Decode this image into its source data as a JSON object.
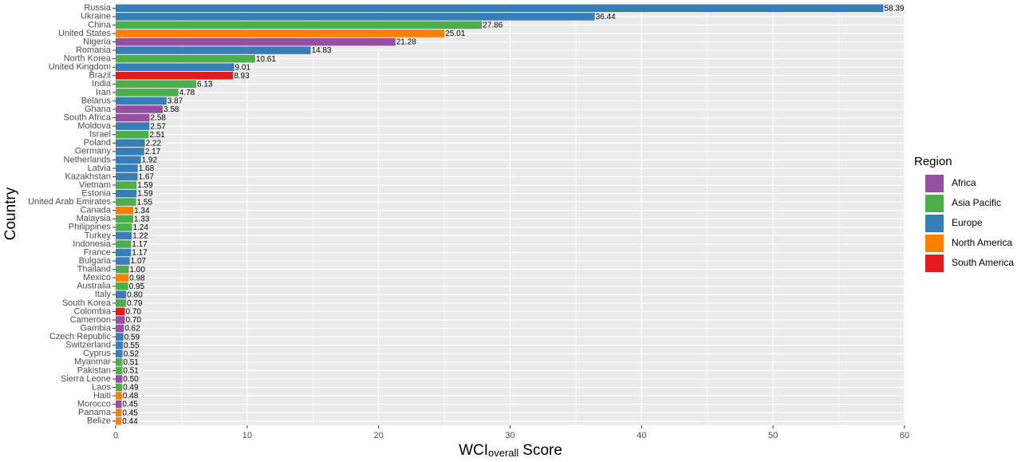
{
  "chart_data": {
    "type": "barh",
    "categories": [
      "Russia",
      "Ukraine",
      "China",
      "United States",
      "Nigeria",
      "Romania",
      "North Korea",
      "United Kingdom",
      "Brazil",
      "India",
      "Iran",
      "Belarus",
      "Ghana",
      "South Africa",
      "Moldova",
      "Israel",
      "Poland",
      "Germany",
      "Netherlands",
      "Latvia",
      "Kazakhstan",
      "Vietnam",
      "Estonia",
      "United Arab Emirates",
      "Canada",
      "Malaysia",
      "Philippines",
      "Turkey",
      "Indonesia",
      "France",
      "Bulgaria",
      "Thailand",
      "Mexico",
      "Australia",
      "Italy",
      "South Korea",
      "Colombia",
      "Cameroon",
      "Gambia",
      "Czech Republic",
      "Switzerland",
      "Cyprus",
      "Myanmar",
      "Pakistan",
      "Sierra Leone",
      "Laos",
      "Haiti",
      "Morocco",
      "Panama",
      "Belize"
    ],
    "series": [
      {
        "name": "Africa",
        "color": "#984ea3",
        "values": [
          null,
          null,
          null,
          null,
          21.28,
          null,
          null,
          null,
          null,
          null,
          null,
          null,
          3.58,
          2.58,
          null,
          null,
          null,
          null,
          null,
          null,
          null,
          null,
          null,
          null,
          null,
          null,
          null,
          null,
          null,
          null,
          null,
          null,
          null,
          null,
          null,
          null,
          null,
          0.7,
          0.62,
          null,
          null,
          null,
          null,
          null,
          0.5,
          null,
          null,
          0.45,
          null,
          null
        ],
        "value_labels": [
          null,
          null,
          null,
          null,
          "21.28",
          null,
          null,
          null,
          null,
          null,
          null,
          null,
          "3.58",
          "2.58",
          null,
          null,
          null,
          null,
          null,
          null,
          null,
          null,
          null,
          null,
          null,
          null,
          null,
          null,
          null,
          null,
          null,
          null,
          null,
          null,
          null,
          null,
          null,
          "0.70",
          "0.62",
          null,
          null,
          null,
          null,
          null,
          "0.50",
          null,
          null,
          "0.45",
          null,
          null
        ]
      },
      {
        "name": "Asia Pacific",
        "color": "#4daf4a",
        "values": [
          null,
          null,
          27.86,
          null,
          null,
          null,
          10.61,
          null,
          null,
          6.13,
          4.78,
          null,
          null,
          null,
          null,
          2.51,
          null,
          null,
          null,
          null,
          null,
          1.59,
          null,
          1.55,
          null,
          1.33,
          1.24,
          null,
          1.17,
          null,
          null,
          1.0,
          null,
          0.95,
          null,
          0.79,
          null,
          null,
          null,
          null,
          null,
          null,
          0.51,
          0.51,
          null,
          0.49,
          null,
          null,
          null,
          null
        ],
        "value_labels": [
          null,
          null,
          "27.86",
          null,
          null,
          null,
          "10.61",
          null,
          null,
          "6.13",
          "4.78",
          null,
          null,
          null,
          null,
          "2.51",
          null,
          null,
          null,
          null,
          null,
          "1.59",
          null,
          "1.55",
          null,
          "1.33",
          "1.24",
          null,
          "1.17",
          null,
          null,
          "1.00",
          null,
          "0.95",
          null,
          "0.79",
          null,
          null,
          null,
          null,
          null,
          null,
          "0.51",
          "0.51",
          null,
          "0.49",
          null,
          null,
          null,
          null
        ]
      },
      {
        "name": "Europe",
        "color": "#377eb8",
        "values": [
          58.39,
          36.44,
          null,
          null,
          null,
          14.83,
          null,
          9.01,
          null,
          null,
          null,
          3.87,
          null,
          null,
          2.57,
          null,
          2.22,
          2.17,
          1.92,
          1.68,
          1.67,
          null,
          1.59,
          null,
          null,
          null,
          null,
          1.22,
          null,
          1.17,
          1.07,
          null,
          null,
          null,
          0.8,
          null,
          null,
          null,
          null,
          0.59,
          0.55,
          0.52,
          null,
          null,
          null,
          null,
          null,
          null,
          null,
          null
        ],
        "value_labels": [
          "58.39",
          "36.44",
          null,
          null,
          null,
          "14.83",
          null,
          "9.01",
          null,
          null,
          null,
          "3.87",
          null,
          null,
          "2.57",
          null,
          "2.22",
          "2.17",
          "1.92",
          "1.68",
          "1.67",
          null,
          "1.59",
          null,
          null,
          null,
          null,
          "1.22",
          null,
          "1.17",
          "1.07",
          null,
          null,
          null,
          "0.80",
          null,
          null,
          null,
          null,
          "0.59",
          "0.55",
          "0.52",
          null,
          null,
          null,
          null,
          null,
          null,
          null,
          null
        ]
      },
      {
        "name": "North America",
        "color": "#ff7f00",
        "values": [
          null,
          null,
          null,
          25.01,
          null,
          null,
          null,
          null,
          null,
          null,
          null,
          null,
          null,
          null,
          null,
          null,
          null,
          null,
          null,
          null,
          null,
          null,
          null,
          null,
          1.34,
          null,
          null,
          null,
          null,
          null,
          null,
          null,
          0.98,
          null,
          null,
          null,
          null,
          null,
          null,
          null,
          null,
          null,
          null,
          null,
          null,
          null,
          0.48,
          null,
          0.45,
          0.44
        ],
        "value_labels": [
          null,
          null,
          null,
          "25.01",
          null,
          null,
          null,
          null,
          null,
          null,
          null,
          null,
          null,
          null,
          null,
          null,
          null,
          null,
          null,
          null,
          null,
          null,
          null,
          null,
          "1.34",
          null,
          null,
          null,
          null,
          null,
          null,
          null,
          "0.98",
          null,
          null,
          null,
          null,
          null,
          null,
          null,
          null,
          null,
          null,
          null,
          null,
          null,
          "0.48",
          null,
          "0.45",
          "0.44"
        ]
      },
      {
        "name": "South America",
        "color": "#e41a1c",
        "values": [
          null,
          null,
          null,
          null,
          null,
          null,
          null,
          null,
          8.93,
          null,
          null,
          null,
          null,
          null,
          null,
          null,
          null,
          null,
          null,
          null,
          null,
          null,
          null,
          null,
          null,
          null,
          null,
          null,
          null,
          null,
          null,
          null,
          null,
          null,
          null,
          null,
          0.7,
          null,
          null,
          null,
          null,
          null,
          null,
          null,
          null,
          null,
          null,
          null,
          null,
          null
        ],
        "value_labels": [
          null,
          null,
          null,
          null,
          null,
          null,
          null,
          null,
          "8.93",
          null,
          null,
          null,
          null,
          null,
          null,
          null,
          null,
          null,
          null,
          null,
          null,
          null,
          null,
          null,
          null,
          null,
          null,
          null,
          null,
          null,
          null,
          null,
          null,
          null,
          null,
          null,
          "0.70",
          null,
          null,
          null,
          null,
          null,
          null,
          null,
          null,
          null,
          null,
          null,
          null,
          null
        ]
      }
    ],
    "xlim": [
      0,
      60
    ],
    "xticks": [
      0,
      10,
      20,
      30,
      40,
      50,
      60
    ],
    "grid": true,
    "x_label": {
      "main": "WCI",
      "sub": "overall",
      "rest": "Score"
    },
    "y_label": "Country",
    "legend": {
      "title": "Region",
      "position": "right"
    }
  }
}
